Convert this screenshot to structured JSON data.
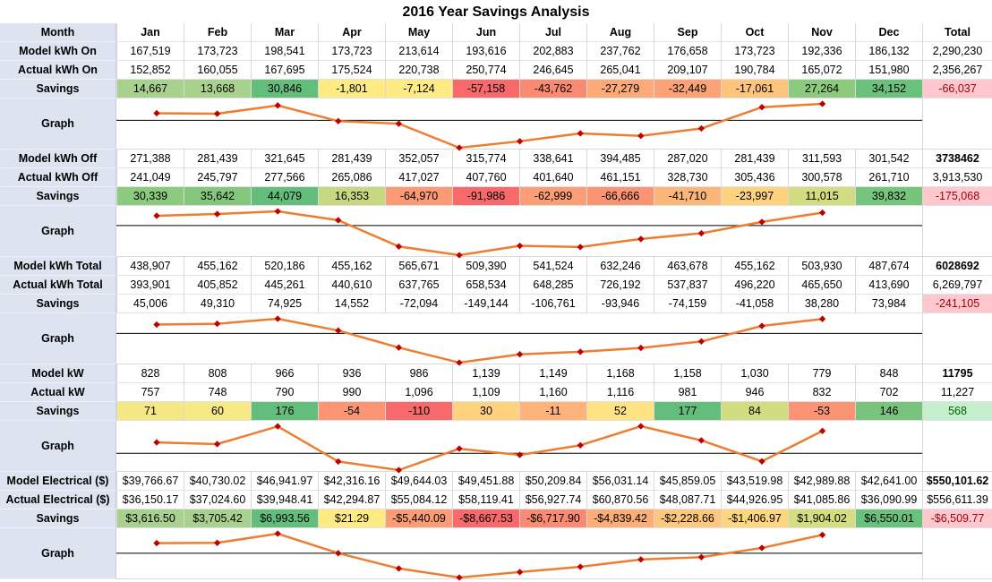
{
  "title": "2016 Year Savings Analysis",
  "header": {
    "label": "Month",
    "months": [
      "Jan",
      "Feb",
      "Mar",
      "Apr",
      "May",
      "Jun",
      "Jul",
      "Aug",
      "Sep",
      "Oct",
      "Nov",
      "Dec"
    ],
    "total": "Total"
  },
  "colors": {
    "line": "#ed7d31",
    "marker": "#c00000",
    "baseline": "#000000"
  },
  "sections": [
    {
      "rows": [
        {
          "label": "Model kWh On",
          "values": [
            "167,519",
            "173,723",
            "198,541",
            "173,723",
            "213,614",
            "193,616",
            "202,883",
            "237,762",
            "176,658",
            "173,723",
            "192,336",
            "186,132"
          ],
          "total": "2,290,230"
        },
        {
          "label": "Actual kWh On",
          "values": [
            "152,852",
            "160,055",
            "167,695",
            "175,524",
            "220,738",
            "250,774",
            "246,645",
            "265,041",
            "209,107",
            "190,784",
            "165,072",
            "151,980"
          ],
          "total": "2,356,267"
        },
        {
          "label": "Savings",
          "values": [
            "14,667",
            "13,668",
            "30,846",
            "-1,801",
            "-7,124",
            "-57,158",
            "-43,762",
            "-27,279",
            "-32,449",
            "-17,061",
            "27,264",
            "34,152"
          ],
          "colors": [
            "#a9d18e",
            "#a9d18e",
            "#63be7b",
            "#ffeb84",
            "#ffeb84",
            "#f8696b",
            "#fa8b72",
            "#fcaa78",
            "#fca277",
            "#fdc47d",
            "#8ccb7e",
            "#6ac17c"
          ],
          "total": "-66,037",
          "total_color": "#ffc7ce",
          "total_text_color": "#9c0006"
        }
      ],
      "graph": {
        "label": "Graph",
        "points": [
          14667,
          13668,
          30846,
          -1801,
          -7124,
          -57158,
          -43762,
          -27279,
          -32449,
          -17061,
          27264,
          34152
        ],
        "range": [
          -57158,
          34152
        ]
      }
    },
    {
      "rows": [
        {
          "label": "Model kWh Off",
          "values": [
            "271,388",
            "281,439",
            "321,645",
            "281,439",
            "352,057",
            "315,774",
            "338,641",
            "394,485",
            "287,020",
            "281,439",
            "311,593",
            "301,542"
          ],
          "total": "3738462",
          "total_bold": true
        },
        {
          "label": "Actual kWh Off",
          "values": [
            "241,049",
            "245,797",
            "277,566",
            "265,086",
            "417,027",
            "407,760",
            "401,640",
            "461,151",
            "328,730",
            "305,436",
            "300,578",
            "261,710"
          ],
          "total": "3,913,530"
        },
        {
          "label": "Savings",
          "values": [
            "30,339",
            "35,642",
            "44,079",
            "16,353",
            "-64,970",
            "-91,986",
            "-62,999",
            "-66,666",
            "-41,710",
            "-23,997",
            "11,015",
            "39,832"
          ],
          "colors": [
            "#8ccb7e",
            "#83c77d",
            "#63be7b",
            "#c6d980",
            "#fb9a75",
            "#f8696b",
            "#fb9d75",
            "#fa9474",
            "#fdb67a",
            "#fed27f",
            "#d2dd81",
            "#75c57c"
          ],
          "total": "-175,068",
          "total_color": "#ffc7ce",
          "total_text_color": "#9c0006"
        }
      ],
      "graph": {
        "label": "Graph",
        "points": [
          30339,
          35642,
          44079,
          16353,
          -64970,
          -91986,
          -62999,
          -66666,
          -41710,
          -23997,
          11015,
          39832
        ],
        "range": [
          -91986,
          44079
        ]
      }
    },
    {
      "rows": [
        {
          "label": "Model kWh Total",
          "values": [
            "438,907",
            "455,162",
            "520,186",
            "455,162",
            "565,671",
            "509,390",
            "541,524",
            "632,246",
            "463,678",
            "455,162",
            "503,930",
            "487,674"
          ],
          "total": "6028692",
          "total_bold": true
        },
        {
          "label": "Actual kWh Total",
          "values": [
            "393,901",
            "405,852",
            "445,261",
            "440,610",
            "637,765",
            "658,534",
            "648,285",
            "726,192",
            "537,837",
            "496,220",
            "465,650",
            "413,690"
          ],
          "total": "6,269,797"
        },
        {
          "label": "Savings",
          "values": [
            "45,006",
            "49,310",
            "74,925",
            "14,552",
            "-72,094",
            "-149,144",
            "-106,761",
            "-93,946",
            "-74,159",
            "-41,058",
            "38,280",
            "73,984"
          ],
          "total": "-241,105",
          "total_color": "#ffc7ce",
          "total_text_color": "#9c0006"
        }
      ],
      "graph": {
        "label": "Graph",
        "points": [
          45006,
          49310,
          74925,
          14552,
          -72094,
          -149144,
          -106761,
          -93946,
          -74159,
          -41058,
          38280,
          73984
        ],
        "range": [
          -149144,
          74925
        ]
      }
    },
    {
      "rows": [
        {
          "label": "Model kW",
          "values": [
            "828",
            "808",
            "966",
            "936",
            "986",
            "1,139",
            "1,149",
            "1,168",
            "1,158",
            "1,030",
            "779",
            "848"
          ],
          "total": "11795",
          "total_bold": true
        },
        {
          "label": "Actual kW",
          "values": [
            "757",
            "748",
            "790",
            "990",
            "1,096",
            "1,109",
            "1,160",
            "1,116",
            "981",
            "946",
            "832",
            "702"
          ],
          "total": "11,227"
        },
        {
          "label": "Savings",
          "values": [
            "71",
            "60",
            "176",
            "-54",
            "-110",
            "30",
            "-11",
            "52",
            "177",
            "84",
            "-53",
            "146"
          ],
          "colors": [
            "#f5e884",
            "#f7e984",
            "#63be7b",
            "#fb9574",
            "#f8696b",
            "#ffd280",
            "#fdb37a",
            "#ffe383",
            "#63be7b",
            "#d1dd81",
            "#fb9474",
            "#78c47c"
          ],
          "total": "568",
          "total_color": "#c6efce",
          "total_text_color": "#006100"
        }
      ],
      "graph": {
        "label": "Graph",
        "points": [
          71,
          60,
          176,
          -54,
          -110,
          30,
          -11,
          52,
          177,
          84,
          -53,
          146
        ],
        "range": [
          -110,
          177
        ]
      }
    },
    {
      "rows": [
        {
          "label": "Model Electrical ($)",
          "values": [
            "$39,766.67",
            "$40,730.02",
            "$46,941.97",
            "$42,316.16",
            "$49,644.03",
            "$49,451.88",
            "$50,209.84",
            "$56,031.14",
            "$45,859.05",
            "$43,519.98",
            "$42,989.88",
            "$42,641.00"
          ],
          "total": "$550,101.62",
          "total_bold": true
        },
        {
          "label": "Actual Electrical ($)",
          "values": [
            "$36,150.17",
            "$37,024.60",
            "$39,948.41",
            "$42,294.87",
            "$55,084.12",
            "$58,119.41",
            "$56,927.74",
            "$60,870.56",
            "$48,087.71",
            "$44,926.95",
            "$41,085.86",
            "$36,090.99"
          ],
          "total": "$556,611.39"
        },
        {
          "label": "Savings",
          "values": [
            "$3,616.50",
            "$3,705.42",
            "$6,993.56",
            "$21.29",
            "-$5,440.09",
            "-$8,667.53",
            "-$6,717.90",
            "-$4,839.42",
            "-$2,228.66",
            "-$1,406.97",
            "$1,904.02",
            "$6,550.01"
          ],
          "colors": [
            "#a9d18e",
            "#a9d18e",
            "#63be7b",
            "#ffeb84",
            "#fb9c75",
            "#f8696b",
            "#fa8b72",
            "#fcae79",
            "#fdc77d",
            "#fed680",
            "#d3de81",
            "#6ac17c"
          ],
          "total": "-$6,509.77",
          "total_color": "#ffc7ce",
          "total_text_color": "#9c0006"
        }
      ],
      "graph": {
        "label": "Graph",
        "points": [
          3616.5,
          3705.42,
          6993.56,
          21.29,
          -5440.09,
          -8667.53,
          -6717.9,
          -4839.42,
          -2228.66,
          -1406.97,
          1904.02,
          6550.01
        ],
        "range": [
          -8667.53,
          6993.56
        ]
      }
    }
  ]
}
